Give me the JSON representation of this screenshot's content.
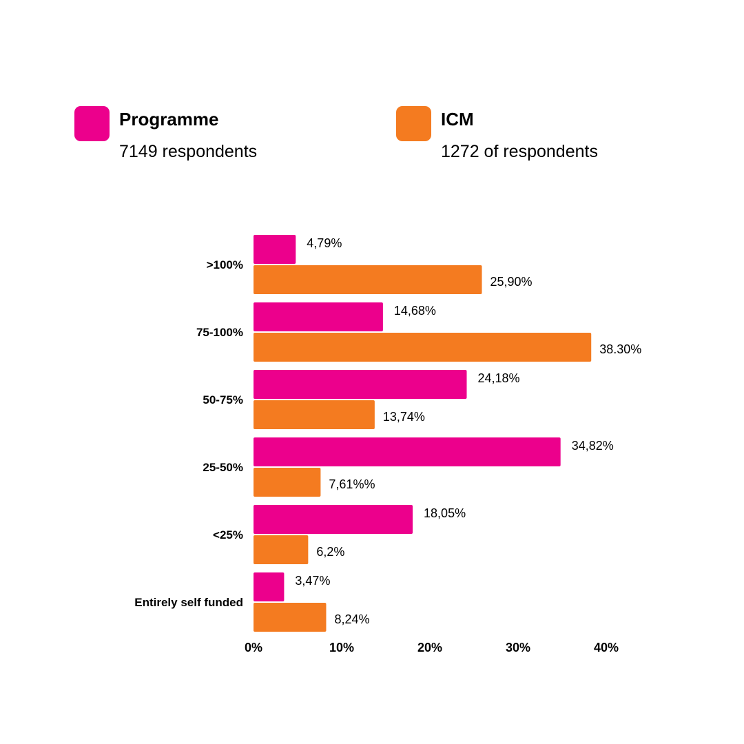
{
  "legend": {
    "programme": {
      "name": "Programme",
      "respondents": "7149 respondents",
      "color": "#EC008C"
    },
    "icm": {
      "name": "ICM",
      "respondents": "1272 of respondents",
      "color": "#F47B20"
    }
  },
  "chart_data": {
    "type": "bar",
    "orientation": "horizontal",
    "categories": [
      ">100%",
      "75-100%",
      "50-75%",
      "25-50%",
      "<25%",
      "Entirely self funded"
    ],
    "series": [
      {
        "name": "Programme",
        "color": "#EC008C",
        "values": [
          4.79,
          14.68,
          24.18,
          34.82,
          18.05,
          3.47
        ],
        "labels": [
          "4,79%",
          "14,68%",
          "24,18%",
          "34,82%",
          "18,05%",
          "3,47%"
        ]
      },
      {
        "name": "ICM",
        "color": "#F47B20",
        "values": [
          25.9,
          38.3,
          13.74,
          7.61,
          6.2,
          8.24
        ],
        "labels": [
          "25,90%",
          "38.30%",
          "13,74%",
          "7,61%%",
          "6,2%",
          "8,24%"
        ]
      }
    ],
    "xlim": [
      0,
      40
    ],
    "xticks": [
      0,
      10,
      20,
      30,
      40
    ],
    "xtick_labels": [
      "0%",
      "10%",
      "20%",
      "30%",
      "40%"
    ],
    "grid": false,
    "legend_position": "top"
  }
}
